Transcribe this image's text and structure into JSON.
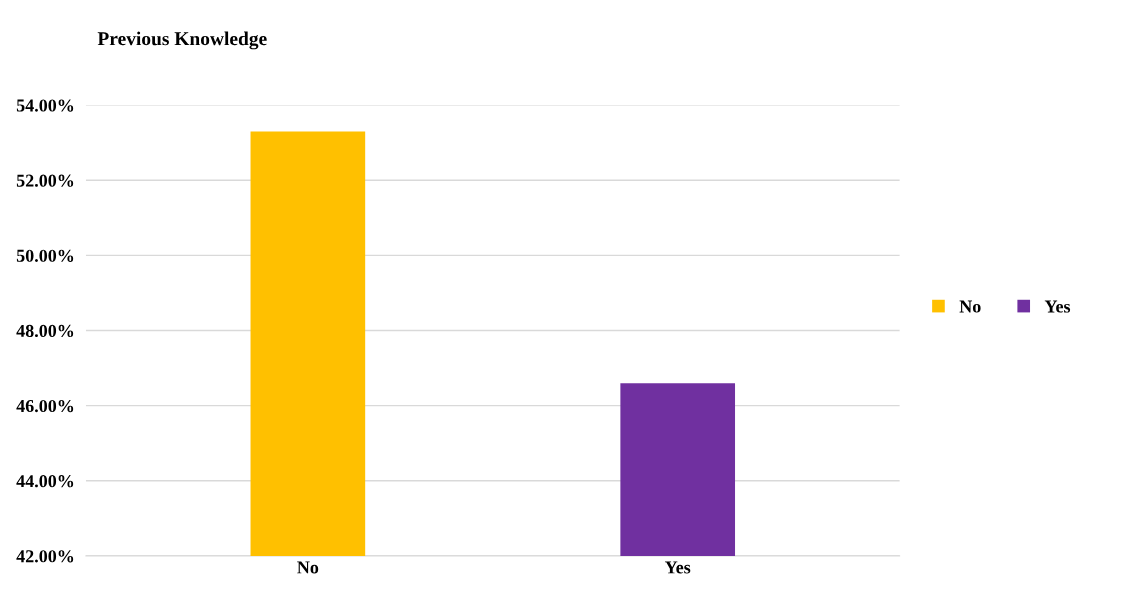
{
  "chart_data": {
    "type": "bar",
    "title": "Previous Knowledge",
    "categories": [
      "No",
      "Yes"
    ],
    "series": [
      {
        "name": "No",
        "color": "#ffc000",
        "values": [
          53.3,
          null
        ]
      },
      {
        "name": "Yes",
        "color": "#7030a0",
        "values": [
          null,
          46.6
        ]
      }
    ],
    "ylim": [
      42,
      54
    ],
    "yticks": [
      {
        "value": 42,
        "label": "42.00%"
      },
      {
        "value": 44,
        "label": "44.00%"
      },
      {
        "value": 46,
        "label": "46.00%"
      },
      {
        "value": 48,
        "label": "48.00%"
      },
      {
        "value": 50,
        "label": "50.00%"
      },
      {
        "value": 52,
        "label": "52.00%"
      },
      {
        "value": 54,
        "label": "54.00%"
      }
    ],
    "grid": "y",
    "legend": "right"
  }
}
